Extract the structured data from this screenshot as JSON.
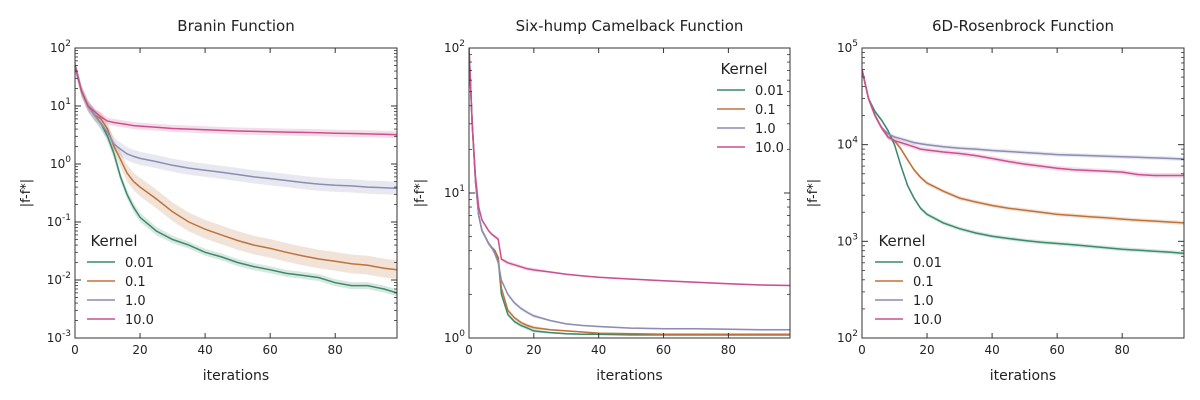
{
  "chart_data": [
    {
      "type": "line",
      "title": "Branin Function",
      "xlabel": "iterations",
      "ylabel": "|f-f*|",
      "xlim": [
        0,
        99
      ],
      "ylim": [
        0.001,
        100
      ],
      "yscale": "log",
      "xticks": [
        "0",
        "20",
        "40",
        "60",
        "80"
      ],
      "yticks": [
        {
          "base": "10",
          "exp": "-3"
        },
        {
          "base": "10",
          "exp": "-2"
        },
        {
          "base": "10",
          "exp": "-1"
        },
        {
          "base": "10",
          "exp": "0"
        },
        {
          "base": "10",
          "exp": "1"
        },
        {
          "base": "10",
          "exp": "2"
        }
      ],
      "legend": {
        "title": "Kernel",
        "placement": "lower-left"
      },
      "x": [
        0,
        2,
        4,
        6,
        8,
        10,
        12,
        14,
        16,
        18,
        20,
        25,
        30,
        35,
        40,
        45,
        50,
        55,
        60,
        65,
        70,
        75,
        80,
        85,
        90,
        95,
        99
      ],
      "series": [
        {
          "name": "0.01",
          "color": "#3a8a6b",
          "values": [
            50,
            18,
            10,
            7,
            5,
            3,
            1.5,
            0.6,
            0.3,
            0.18,
            0.12,
            0.07,
            0.05,
            0.04,
            0.03,
            0.025,
            0.02,
            0.017,
            0.015,
            0.013,
            0.012,
            0.011,
            0.009,
            0.008,
            0.008,
            0.007,
            0.006
          ],
          "band": [
            0.25,
            0.25,
            0.25,
            0.25,
            0.25,
            0.25,
            0.25,
            0.2,
            0.2,
            0.2,
            0.2,
            0.18,
            0.16,
            0.15,
            0.15,
            0.15,
            0.15,
            0.15,
            0.15,
            0.15,
            0.15,
            0.15,
            0.15,
            0.15,
            0.15,
            0.15,
            0.15
          ]
        },
        {
          "name": "0.1",
          "color": "#c0723a",
          "values": [
            50,
            18,
            10,
            7,
            6,
            4,
            2,
            1.2,
            0.7,
            0.5,
            0.4,
            0.25,
            0.15,
            0.1,
            0.075,
            0.06,
            0.048,
            0.04,
            0.035,
            0.03,
            0.026,
            0.023,
            0.021,
            0.019,
            0.018,
            0.016,
            0.015
          ],
          "band": [
            0.25,
            0.25,
            0.25,
            0.25,
            0.3,
            0.3,
            0.3,
            0.35,
            0.4,
            0.4,
            0.45,
            0.45,
            0.45,
            0.45,
            0.45,
            0.45,
            0.45,
            0.45,
            0.45,
            0.45,
            0.45,
            0.45,
            0.45,
            0.45,
            0.45,
            0.45,
            0.45
          ]
        },
        {
          "name": "1.0",
          "color": "#8c8cb4",
          "values": [
            50,
            18,
            10,
            7,
            5,
            3.5,
            2.2,
            1.8,
            1.5,
            1.35,
            1.25,
            1.1,
            0.95,
            0.85,
            0.78,
            0.72,
            0.66,
            0.6,
            0.56,
            0.52,
            0.48,
            0.45,
            0.43,
            0.42,
            0.4,
            0.39,
            0.38
          ],
          "band": [
            0.25,
            0.25,
            0.25,
            0.25,
            0.3,
            0.3,
            0.3,
            0.3,
            0.3,
            0.3,
            0.3,
            0.3,
            0.3,
            0.3,
            0.3,
            0.3,
            0.3,
            0.3,
            0.3,
            0.3,
            0.3,
            0.3,
            0.3,
            0.3,
            0.3,
            0.3,
            0.3
          ]
        },
        {
          "name": "10.0",
          "color": "#cc4f92",
          "values": [
            50,
            18,
            10,
            8,
            6.5,
            5.5,
            5.2,
            5,
            4.8,
            4.6,
            4.5,
            4.3,
            4.1,
            4,
            3.9,
            3.8,
            3.7,
            3.65,
            3.6,
            3.55,
            3.5,
            3.45,
            3.4,
            3.35,
            3.3,
            3.25,
            3.2
          ],
          "band": [
            0.15,
            0.15,
            0.15,
            0.15,
            0.15,
            0.15,
            0.15,
            0.15,
            0.15,
            0.15,
            0.15,
            0.15,
            0.15,
            0.15,
            0.15,
            0.15,
            0.15,
            0.15,
            0.15,
            0.15,
            0.15,
            0.15,
            0.15,
            0.15,
            0.15,
            0.15,
            0.15
          ]
        }
      ]
    },
    {
      "type": "line",
      "title": "Six-hump Camelback Function",
      "xlabel": "iterations",
      "ylabel": "|f-f*|",
      "xlim": [
        0,
        99
      ],
      "ylim": [
        1,
        100
      ],
      "yscale": "log",
      "xticks": [
        "0",
        "20",
        "40",
        "60",
        "80"
      ],
      "yticks": [
        {
          "base": "10",
          "exp": "0"
        },
        {
          "base": "10",
          "exp": "1"
        },
        {
          "base": "10",
          "exp": "2"
        }
      ],
      "legend": {
        "title": "Kernel",
        "placement": "top-right"
      },
      "x": [
        0,
        1,
        2,
        3,
        4,
        5,
        6,
        7,
        8,
        9,
        10,
        12,
        14,
        16,
        18,
        20,
        25,
        30,
        35,
        40,
        50,
        60,
        70,
        80,
        90,
        99
      ],
      "series": [
        {
          "name": "0.01",
          "color": "#3a8a6b",
          "values": [
            100,
            30,
            12,
            7,
            5.5,
            5,
            4.5,
            4.2,
            4,
            3.5,
            2,
            1.45,
            1.3,
            1.22,
            1.17,
            1.12,
            1.09,
            1.07,
            1.06,
            1.06,
            1.05,
            1.05,
            1.05,
            1.05,
            1.05,
            1.05
          ],
          "band": [
            0.03,
            0.03,
            0.03,
            0.03,
            0.03,
            0.03,
            0.03,
            0.03,
            0.03,
            0.03,
            0.03,
            0.03,
            0.03,
            0.03,
            0.03,
            0.03,
            0.015,
            0.015,
            0.015,
            0.015,
            0.015,
            0.015,
            0.015,
            0.015,
            0.015,
            0.015
          ]
        },
        {
          "name": "0.1",
          "color": "#c0723a",
          "values": [
            100,
            30,
            12,
            7,
            5.5,
            5,
            4.5,
            4.2,
            4,
            3.6,
            2.2,
            1.55,
            1.38,
            1.28,
            1.22,
            1.18,
            1.14,
            1.12,
            1.1,
            1.08,
            1.07,
            1.06,
            1.06,
            1.06,
            1.06,
            1.06
          ],
          "band": [
            0.03,
            0.03,
            0.03,
            0.03,
            0.03,
            0.03,
            0.03,
            0.03,
            0.03,
            0.03,
            0.03,
            0.03,
            0.03,
            0.03,
            0.03,
            0.03,
            0.015,
            0.015,
            0.015,
            0.015,
            0.015,
            0.015,
            0.015,
            0.015,
            0.015,
            0.015
          ]
        },
        {
          "name": "1.0",
          "color": "#8c8cb4",
          "values": [
            100,
            30,
            12,
            7,
            5.5,
            5,
            4.5,
            4.2,
            3.8,
            3.3,
            2.5,
            2,
            1.75,
            1.6,
            1.5,
            1.42,
            1.32,
            1.25,
            1.22,
            1.2,
            1.17,
            1.16,
            1.16,
            1.15,
            1.14,
            1.14
          ],
          "band": [
            0.03,
            0.03,
            0.03,
            0.03,
            0.03,
            0.03,
            0.03,
            0.03,
            0.03,
            0.03,
            0.03,
            0.03,
            0.03,
            0.03,
            0.03,
            0.03,
            0.015,
            0.015,
            0.015,
            0.015,
            0.015,
            0.015,
            0.015,
            0.015,
            0.015,
            0.015
          ]
        },
        {
          "name": "10.0",
          "color": "#cc4f92",
          "values": [
            100,
            30,
            13,
            8,
            6.5,
            6,
            5.5,
            5.2,
            5,
            4.8,
            3.5,
            3.3,
            3.2,
            3.1,
            3.0,
            2.95,
            2.85,
            2.75,
            2.68,
            2.62,
            2.55,
            2.48,
            2.42,
            2.37,
            2.32,
            2.3
          ],
          "band": [
            0.03,
            0.03,
            0.03,
            0.03,
            0.03,
            0.03,
            0.03,
            0.03,
            0.03,
            0.03,
            0.03,
            0.03,
            0.03,
            0.03,
            0.03,
            0.03,
            0.015,
            0.015,
            0.015,
            0.015,
            0.015,
            0.015,
            0.015,
            0.015,
            0.015,
            0.015
          ]
        }
      ]
    },
    {
      "type": "line",
      "title": "6D-Rosenbrock Function",
      "xlabel": "iterations",
      "ylabel": "|f-f*|",
      "xlim": [
        0,
        99
      ],
      "ylim": [
        100,
        100000
      ],
      "yscale": "log",
      "xticks": [
        "0",
        "20",
        "40",
        "60",
        "80"
      ],
      "yticks": [
        {
          "base": "10",
          "exp": "2"
        },
        {
          "base": "10",
          "exp": "3"
        },
        {
          "base": "10",
          "exp": "4"
        },
        {
          "base": "10",
          "exp": "5"
        }
      ],
      "legend": {
        "title": "Kernel",
        "placement": "lower-left"
      },
      "x": [
        0,
        2,
        4,
        6,
        8,
        10,
        12,
        14,
        16,
        18,
        20,
        25,
        30,
        35,
        40,
        45,
        50,
        55,
        60,
        65,
        70,
        75,
        80,
        85,
        90,
        95,
        99
      ],
      "series": [
        {
          "name": "0.01",
          "color": "#3a8a6b",
          "values": [
            60000,
            30000,
            22000,
            18000,
            14000,
            10000,
            6000,
            3800,
            2800,
            2200,
            1900,
            1550,
            1350,
            1220,
            1130,
            1070,
            1020,
            980,
            950,
            920,
            890,
            860,
            830,
            810,
            790,
            770,
            750
          ],
          "band": [
            0.05,
            0.05,
            0.05,
            0.05,
            0.05,
            0.05,
            0.05,
            0.05,
            0.05,
            0.05,
            0.05,
            0.05,
            0.05,
            0.05,
            0.05,
            0.05,
            0.05,
            0.05,
            0.05,
            0.05,
            0.05,
            0.05,
            0.05,
            0.05,
            0.05,
            0.05,
            0.05
          ]
        },
        {
          "name": "0.1",
          "color": "#c0723a",
          "values": [
            60000,
            30000,
            20000,
            15000,
            12000,
            11000,
            9000,
            7000,
            5500,
            4600,
            4000,
            3300,
            2800,
            2550,
            2350,
            2200,
            2100,
            2000,
            1900,
            1850,
            1800,
            1750,
            1700,
            1650,
            1620,
            1580,
            1550
          ],
          "band": [
            0.05,
            0.05,
            0.05,
            0.05,
            0.05,
            0.05,
            0.05,
            0.05,
            0.05,
            0.05,
            0.05,
            0.05,
            0.05,
            0.05,
            0.05,
            0.05,
            0.05,
            0.05,
            0.05,
            0.05,
            0.05,
            0.05,
            0.05,
            0.05,
            0.05,
            0.05,
            0.05
          ]
        },
        {
          "name": "1.0",
          "color": "#8c8cb4",
          "values": [
            60000,
            30000,
            20000,
            15000,
            13000,
            12000,
            11500,
            11000,
            10500,
            10200,
            10000,
            9500,
            9200,
            9000,
            8700,
            8500,
            8300,
            8100,
            7900,
            7800,
            7700,
            7600,
            7500,
            7400,
            7300,
            7200,
            7100
          ],
          "band": [
            0.05,
            0.05,
            0.05,
            0.05,
            0.05,
            0.05,
            0.05,
            0.05,
            0.05,
            0.05,
            0.05,
            0.05,
            0.05,
            0.05,
            0.05,
            0.05,
            0.05,
            0.05,
            0.05,
            0.05,
            0.05,
            0.05,
            0.05,
            0.05,
            0.05,
            0.05,
            0.05
          ]
        },
        {
          "name": "10.0",
          "color": "#cc4f92",
          "values": [
            60000,
            30000,
            20000,
            15000,
            12000,
            11000,
            10500,
            10000,
            9500,
            9000,
            8800,
            8400,
            8100,
            7700,
            7200,
            6700,
            6300,
            6000,
            5700,
            5500,
            5400,
            5300,
            5200,
            4900,
            4800,
            4800,
            4800
          ],
          "band": [
            0.06,
            0.06,
            0.06,
            0.06,
            0.06,
            0.06,
            0.06,
            0.06,
            0.06,
            0.06,
            0.06,
            0.06,
            0.06,
            0.06,
            0.06,
            0.06,
            0.06,
            0.06,
            0.06,
            0.06,
            0.06,
            0.06,
            0.06,
            0.06,
            0.06,
            0.06,
            0.06
          ]
        }
      ]
    }
  ]
}
